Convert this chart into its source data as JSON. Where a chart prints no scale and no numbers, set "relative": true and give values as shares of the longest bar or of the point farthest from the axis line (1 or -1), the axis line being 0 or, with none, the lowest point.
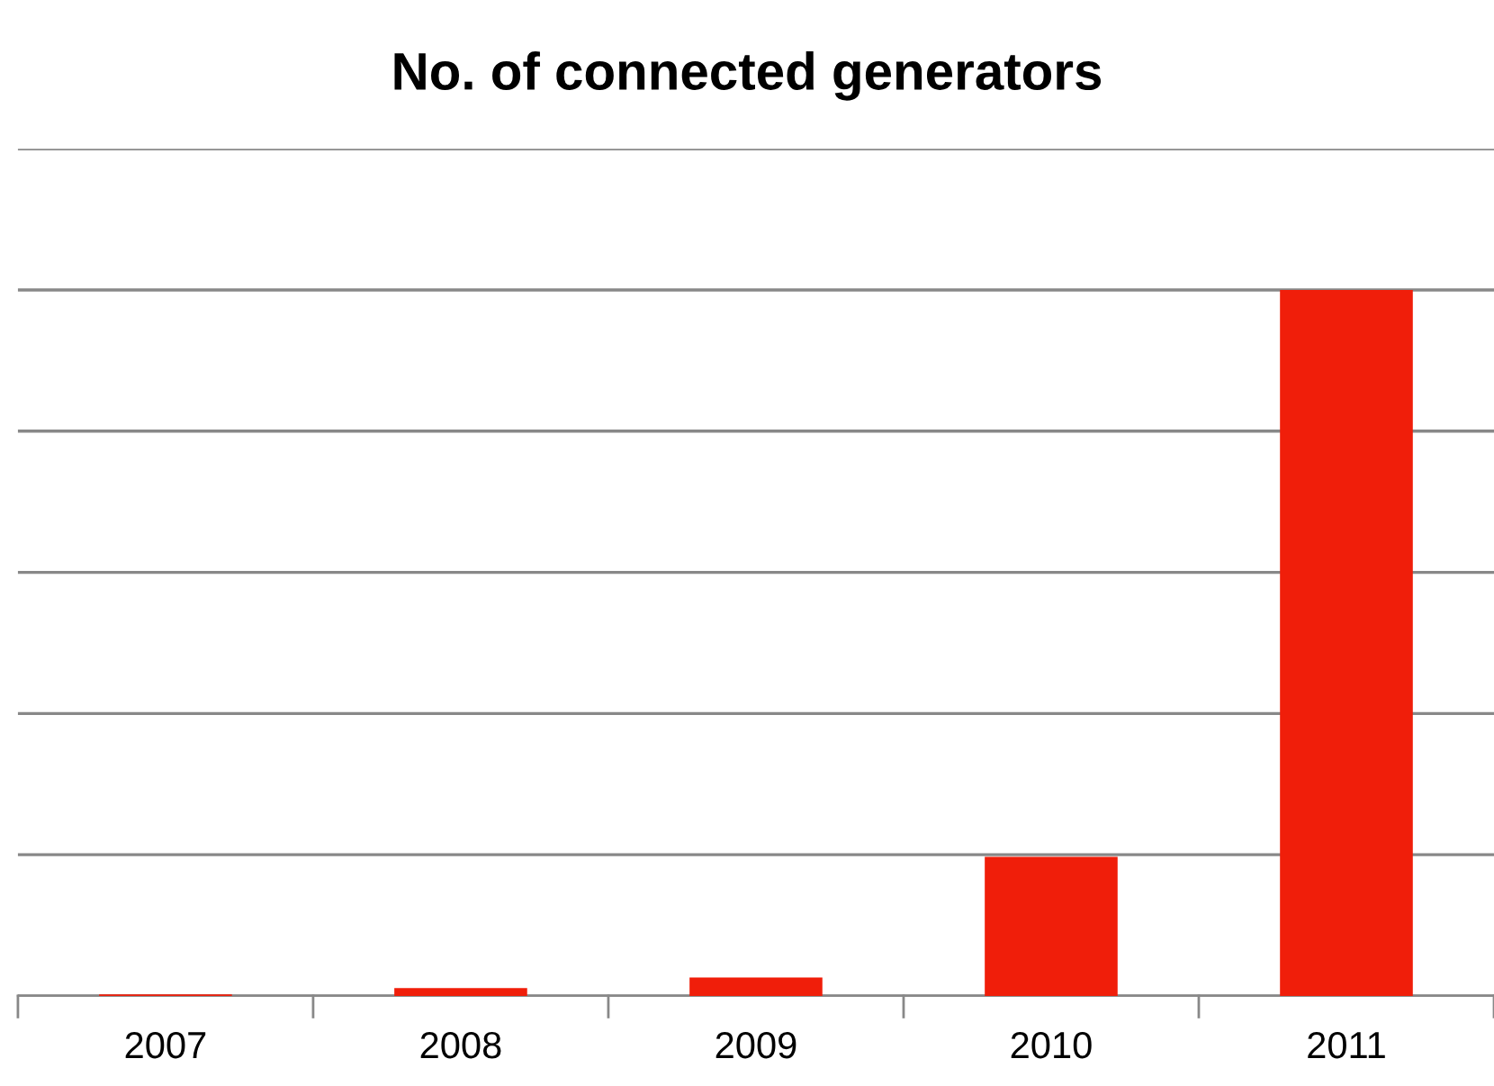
{
  "chart_data": {
    "type": "bar",
    "title": "No. of connected generators",
    "categories": [
      "2007",
      "2008",
      "2009",
      "2010",
      "2011"
    ],
    "values": [
      0.002,
      0.011,
      0.026,
      0.197,
      1
    ],
    "color": "#f01e0a",
    "relative": true,
    "grid": "y"
  }
}
